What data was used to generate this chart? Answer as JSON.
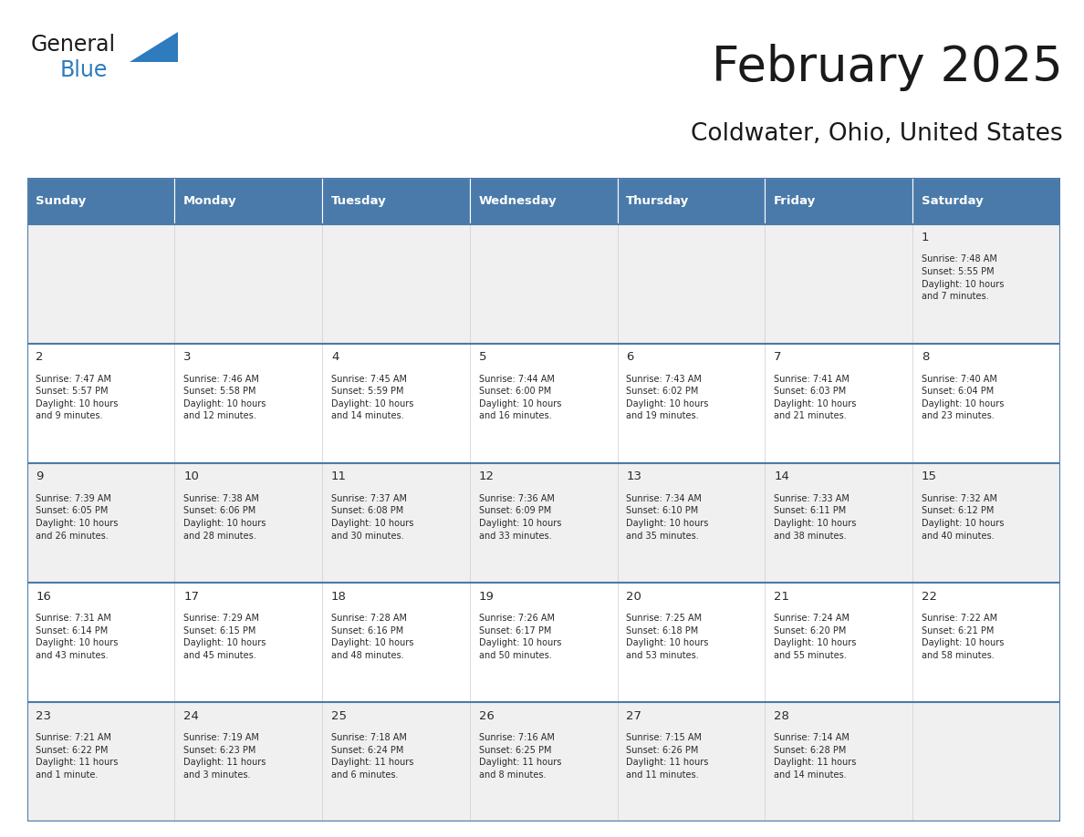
{
  "title": "February 2025",
  "subtitle": "Coldwater, Ohio, United States",
  "header_bg": "#4a7aaa",
  "header_text_color": "#ffffff",
  "row_bg_even": "#f0f0f0",
  "row_bg_odd": "#ffffff",
  "border_color": "#4a7aaa",
  "cell_border_color": "#cccccc",
  "day_headers": [
    "Sunday",
    "Monday",
    "Tuesday",
    "Wednesday",
    "Thursday",
    "Friday",
    "Saturday"
  ],
  "calendar_data": [
    [
      {
        "day": null,
        "info": null
      },
      {
        "day": null,
        "info": null
      },
      {
        "day": null,
        "info": null
      },
      {
        "day": null,
        "info": null
      },
      {
        "day": null,
        "info": null
      },
      {
        "day": null,
        "info": null
      },
      {
        "day": 1,
        "info": "Sunrise: 7:48 AM\nSunset: 5:55 PM\nDaylight: 10 hours\nand 7 minutes."
      }
    ],
    [
      {
        "day": 2,
        "info": "Sunrise: 7:47 AM\nSunset: 5:57 PM\nDaylight: 10 hours\nand 9 minutes."
      },
      {
        "day": 3,
        "info": "Sunrise: 7:46 AM\nSunset: 5:58 PM\nDaylight: 10 hours\nand 12 minutes."
      },
      {
        "day": 4,
        "info": "Sunrise: 7:45 AM\nSunset: 5:59 PM\nDaylight: 10 hours\nand 14 minutes."
      },
      {
        "day": 5,
        "info": "Sunrise: 7:44 AM\nSunset: 6:00 PM\nDaylight: 10 hours\nand 16 minutes."
      },
      {
        "day": 6,
        "info": "Sunrise: 7:43 AM\nSunset: 6:02 PM\nDaylight: 10 hours\nand 19 minutes."
      },
      {
        "day": 7,
        "info": "Sunrise: 7:41 AM\nSunset: 6:03 PM\nDaylight: 10 hours\nand 21 minutes."
      },
      {
        "day": 8,
        "info": "Sunrise: 7:40 AM\nSunset: 6:04 PM\nDaylight: 10 hours\nand 23 minutes."
      }
    ],
    [
      {
        "day": 9,
        "info": "Sunrise: 7:39 AM\nSunset: 6:05 PM\nDaylight: 10 hours\nand 26 minutes."
      },
      {
        "day": 10,
        "info": "Sunrise: 7:38 AM\nSunset: 6:06 PM\nDaylight: 10 hours\nand 28 minutes."
      },
      {
        "day": 11,
        "info": "Sunrise: 7:37 AM\nSunset: 6:08 PM\nDaylight: 10 hours\nand 30 minutes."
      },
      {
        "day": 12,
        "info": "Sunrise: 7:36 AM\nSunset: 6:09 PM\nDaylight: 10 hours\nand 33 minutes."
      },
      {
        "day": 13,
        "info": "Sunrise: 7:34 AM\nSunset: 6:10 PM\nDaylight: 10 hours\nand 35 minutes."
      },
      {
        "day": 14,
        "info": "Sunrise: 7:33 AM\nSunset: 6:11 PM\nDaylight: 10 hours\nand 38 minutes."
      },
      {
        "day": 15,
        "info": "Sunrise: 7:32 AM\nSunset: 6:12 PM\nDaylight: 10 hours\nand 40 minutes."
      }
    ],
    [
      {
        "day": 16,
        "info": "Sunrise: 7:31 AM\nSunset: 6:14 PM\nDaylight: 10 hours\nand 43 minutes."
      },
      {
        "day": 17,
        "info": "Sunrise: 7:29 AM\nSunset: 6:15 PM\nDaylight: 10 hours\nand 45 minutes."
      },
      {
        "day": 18,
        "info": "Sunrise: 7:28 AM\nSunset: 6:16 PM\nDaylight: 10 hours\nand 48 minutes."
      },
      {
        "day": 19,
        "info": "Sunrise: 7:26 AM\nSunset: 6:17 PM\nDaylight: 10 hours\nand 50 minutes."
      },
      {
        "day": 20,
        "info": "Sunrise: 7:25 AM\nSunset: 6:18 PM\nDaylight: 10 hours\nand 53 minutes."
      },
      {
        "day": 21,
        "info": "Sunrise: 7:24 AM\nSunset: 6:20 PM\nDaylight: 10 hours\nand 55 minutes."
      },
      {
        "day": 22,
        "info": "Sunrise: 7:22 AM\nSunset: 6:21 PM\nDaylight: 10 hours\nand 58 minutes."
      }
    ],
    [
      {
        "day": 23,
        "info": "Sunrise: 7:21 AM\nSunset: 6:22 PM\nDaylight: 11 hours\nand 1 minute."
      },
      {
        "day": 24,
        "info": "Sunrise: 7:19 AM\nSunset: 6:23 PM\nDaylight: 11 hours\nand 3 minutes."
      },
      {
        "day": 25,
        "info": "Sunrise: 7:18 AM\nSunset: 6:24 PM\nDaylight: 11 hours\nand 6 minutes."
      },
      {
        "day": 26,
        "info": "Sunrise: 7:16 AM\nSunset: 6:25 PM\nDaylight: 11 hours\nand 8 minutes."
      },
      {
        "day": 27,
        "info": "Sunrise: 7:15 AM\nSunset: 6:26 PM\nDaylight: 11 hours\nand 11 minutes."
      },
      {
        "day": 28,
        "info": "Sunrise: 7:14 AM\nSunset: 6:28 PM\nDaylight: 11 hours\nand 14 minutes."
      },
      {
        "day": null,
        "info": null
      }
    ]
  ],
  "logo_general_color": "#1a1a1a",
  "logo_blue_color": "#2e7bbd",
  "logo_triangle_color": "#2e7bbd",
  "title_color": "#1a1a1a",
  "subtitle_color": "#1a1a1a"
}
